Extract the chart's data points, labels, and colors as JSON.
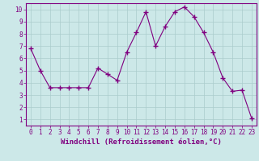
{
  "x": [
    0,
    1,
    2,
    3,
    4,
    5,
    6,
    7,
    8,
    9,
    10,
    11,
    12,
    13,
    14,
    15,
    16,
    17,
    18,
    19,
    20,
    21,
    22,
    23
  ],
  "y": [
    6.8,
    5.0,
    3.6,
    3.6,
    3.6,
    3.6,
    3.6,
    5.2,
    4.7,
    4.2,
    6.5,
    8.1,
    9.8,
    7.0,
    8.6,
    9.8,
    10.2,
    9.4,
    8.1,
    6.5,
    4.4,
    3.3,
    3.4,
    1.1
  ],
  "line_color": "#800080",
  "marker": "+",
  "marker_size": 4,
  "background_color": "#cce8e8",
  "grid_color": "#aacccc",
  "xlabel": "Windchill (Refroidissement éolien,°C)",
  "xlim": [
    -0.5,
    23.5
  ],
  "ylim": [
    0.5,
    10.5
  ],
  "yticks": [
    1,
    2,
    3,
    4,
    5,
    6,
    7,
    8,
    9,
    10
  ],
  "xticks": [
    0,
    1,
    2,
    3,
    4,
    5,
    6,
    7,
    8,
    9,
    10,
    11,
    12,
    13,
    14,
    15,
    16,
    17,
    18,
    19,
    20,
    21,
    22,
    23
  ],
  "tick_color": "#800080",
  "label_color": "#800080",
  "spine_color": "#800080",
  "xlabel_fontsize": 6.5,
  "tick_fontsize": 5.5,
  "line_width": 0.8
}
